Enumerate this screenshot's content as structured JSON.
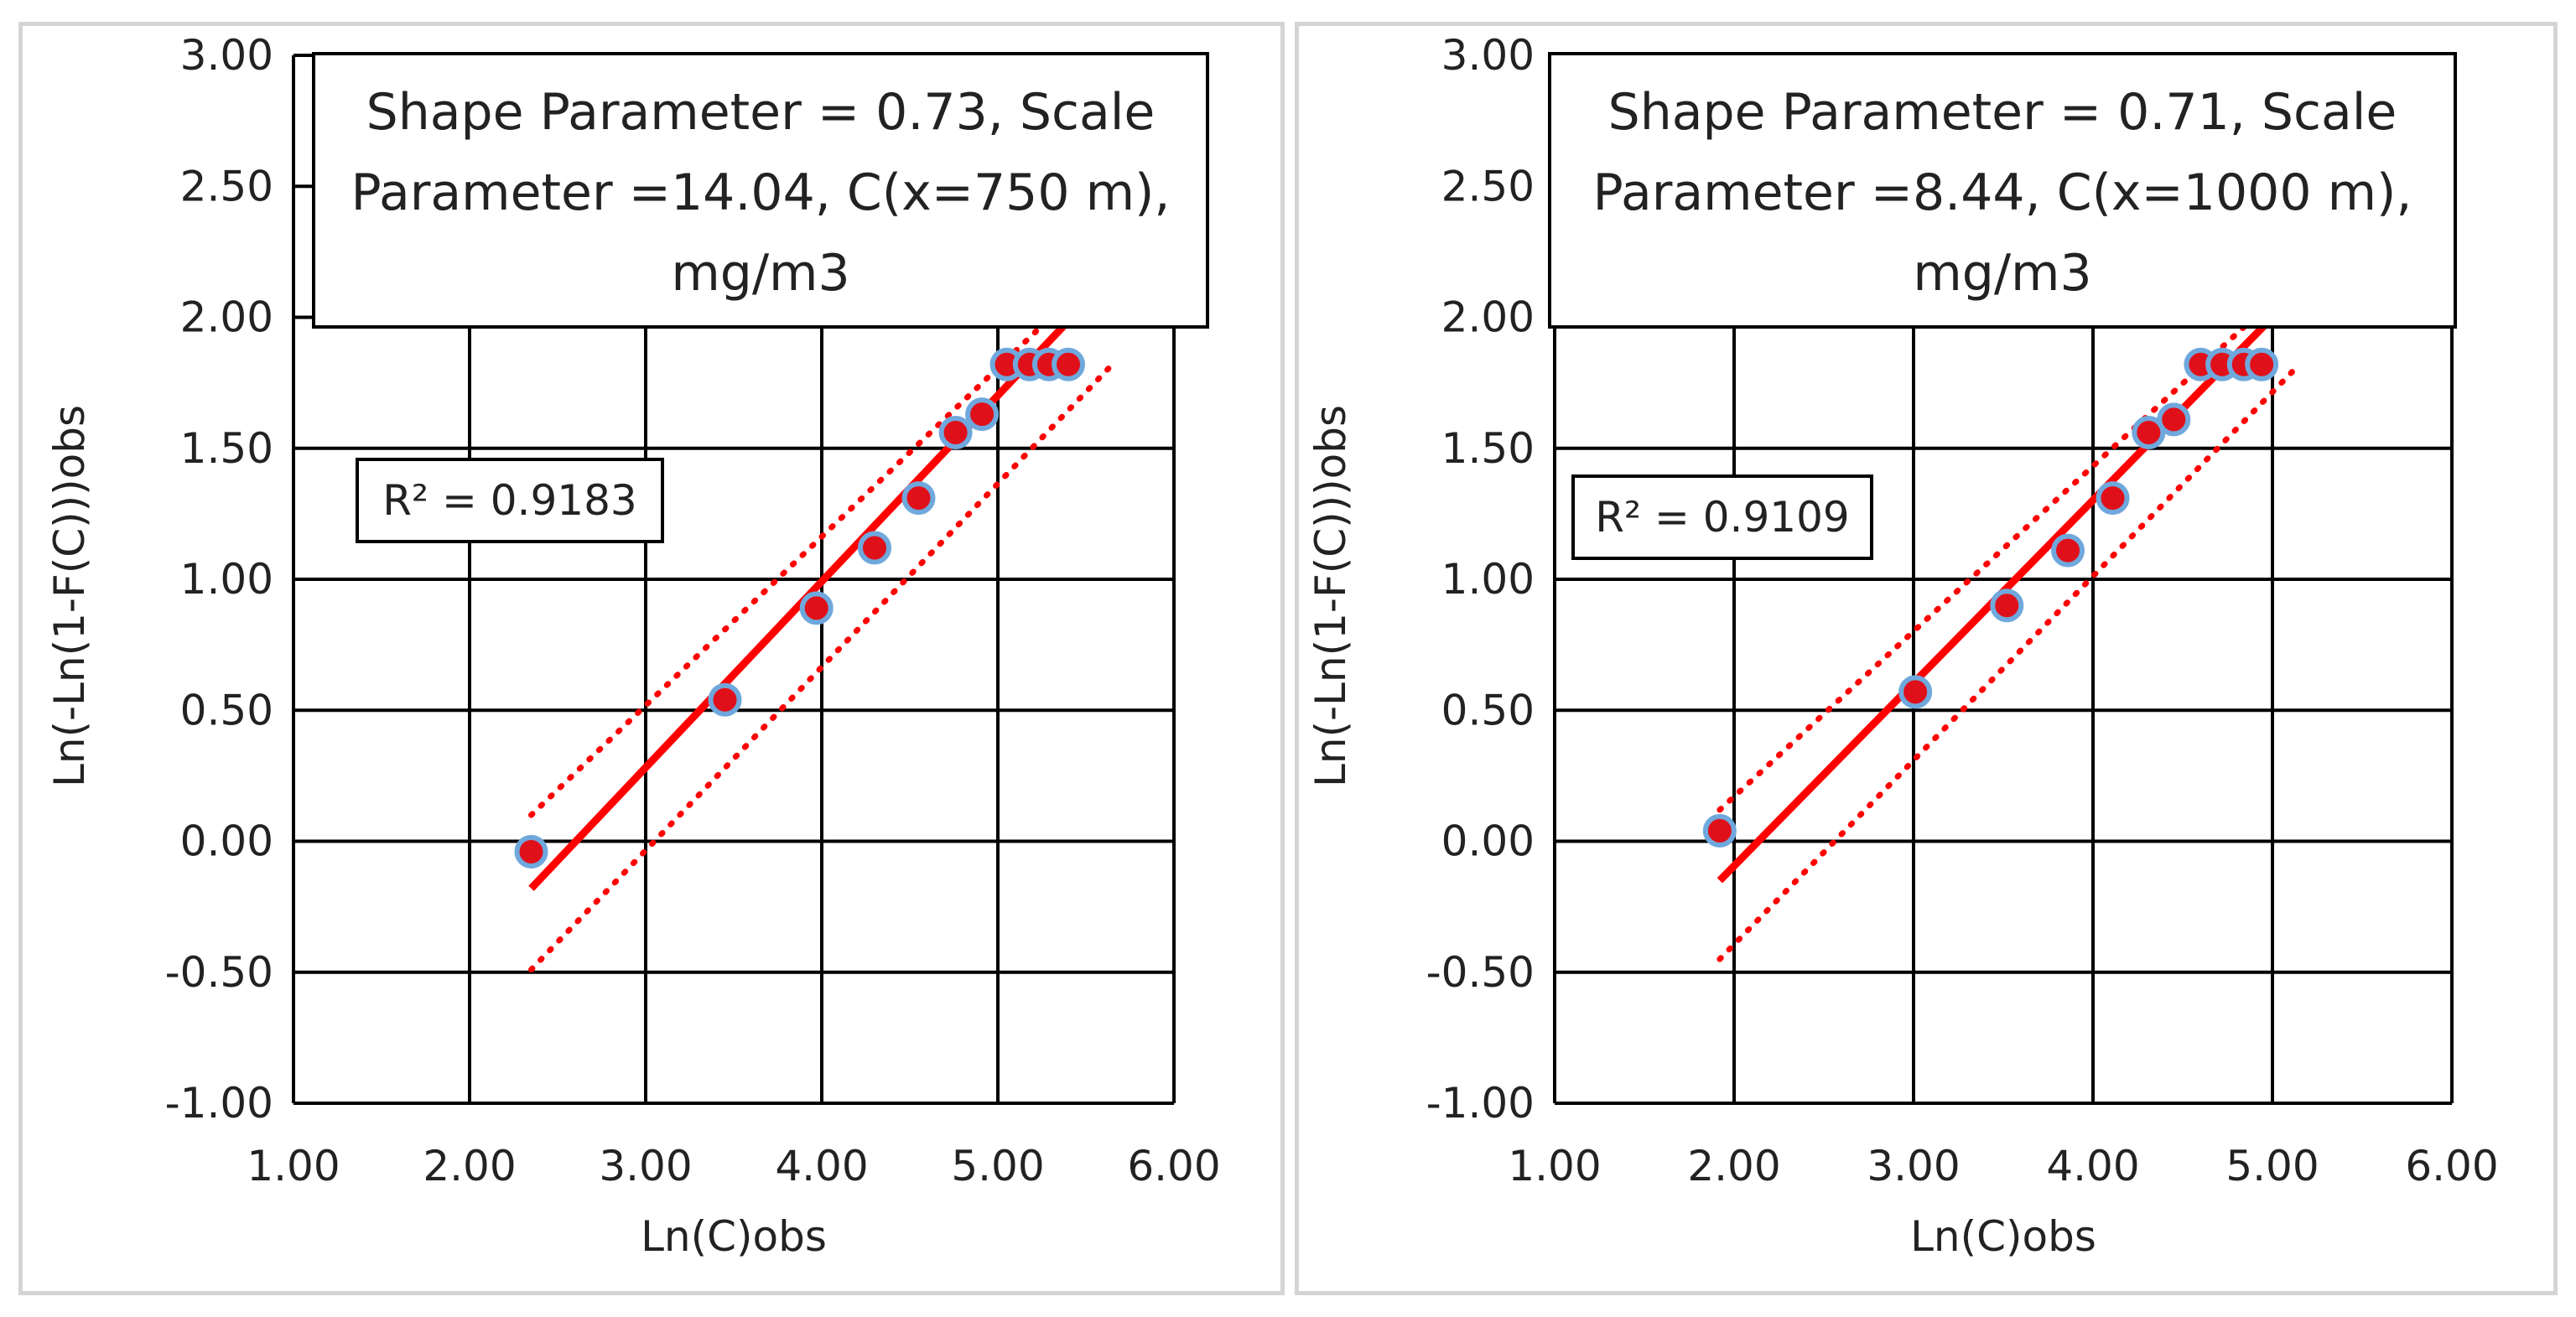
{
  "chart_data": [
    {
      "type": "scatter",
      "xlabel": "Ln(C)obs",
      "ylabel": "Ln(-Ln(1-F(C)))obs",
      "xlim": [
        1.0,
        6.0
      ],
      "ylim": [
        -1.0,
        3.0
      ],
      "x_ticks": [
        "1.00",
        "2.00",
        "3.00",
        "4.00",
        "5.00",
        "6.00"
      ],
      "y_ticks": [
        "-1.00",
        "-0.50",
        "0.00",
        "0.50",
        "1.00",
        "1.50",
        "2.00",
        "2.50",
        "3.00"
      ],
      "grid": true,
      "annotation": [
        "Shape Parameter = 0.73, Scale",
        "Parameter =14.04, C(x=750 m),",
        "mg/m3"
      ],
      "r2_label": "R² = 0.9183",
      "points": [
        {
          "x": 2.35,
          "y": -0.04
        },
        {
          "x": 3.45,
          "y": 0.54
        },
        {
          "x": 3.97,
          "y": 0.89
        },
        {
          "x": 4.3,
          "y": 1.12
        },
        {
          "x": 4.55,
          "y": 1.31
        },
        {
          "x": 4.76,
          "y": 1.56
        },
        {
          "x": 4.91,
          "y": 1.63
        },
        {
          "x": 5.05,
          "y": 1.82
        },
        {
          "x": 5.18,
          "y": 1.82
        },
        {
          "x": 5.29,
          "y": 1.82
        },
        {
          "x": 5.4,
          "y": 1.82
        }
      ],
      "fit_line": {
        "x": [
          2.35,
          5.42
        ],
        "y": [
          -0.18,
          2.0
        ]
      },
      "upper_band": {
        "x": [
          2.35,
          5.3
        ],
        "y": [
          0.1,
          2.0
        ]
      },
      "lower_band": {
        "x": [
          2.35,
          5.65
        ],
        "y": [
          -0.49,
          1.82
        ]
      },
      "colors": {
        "point_fill": "#e0101a",
        "point_edge": "#6fa8dc",
        "line": "#ff0000"
      }
    },
    {
      "type": "scatter",
      "xlabel": "Ln(C)obs",
      "ylabel": "Ln(-Ln(1-F(C)))obs",
      "xlim": [
        1.0,
        6.0
      ],
      "ylim": [
        -1.0,
        3.0
      ],
      "x_ticks": [
        "1.00",
        "2.00",
        "3.00",
        "4.00",
        "5.00",
        "6.00"
      ],
      "y_ticks": [
        "-1.00",
        "-0.50",
        "0.00",
        "0.50",
        "1.00",
        "1.50",
        "2.00",
        "2.50",
        "3.00"
      ],
      "grid": true,
      "annotation": [
        "Shape Parameter = 0.71, Scale",
        "Parameter =8.44, C(x=1000 m),",
        "mg/m3"
      ],
      "r2_label": "R² = 0.9109",
      "points": [
        {
          "x": 1.92,
          "y": 0.04
        },
        {
          "x": 3.01,
          "y": 0.57
        },
        {
          "x": 3.52,
          "y": 0.9
        },
        {
          "x": 3.86,
          "y": 1.11
        },
        {
          "x": 4.11,
          "y": 1.31
        },
        {
          "x": 4.31,
          "y": 1.56
        },
        {
          "x": 4.45,
          "y": 1.61
        },
        {
          "x": 4.6,
          "y": 1.82
        },
        {
          "x": 4.72,
          "y": 1.82
        },
        {
          "x": 4.84,
          "y": 1.82
        },
        {
          "x": 4.94,
          "y": 1.82
        }
      ],
      "fit_line": {
        "x": [
          1.92,
          5.0
        ],
        "y": [
          -0.15,
          2.0
        ]
      },
      "upper_band": {
        "x": [
          1.92,
          4.9
        ],
        "y": [
          0.12,
          2.0
        ]
      },
      "lower_band": {
        "x": [
          1.92,
          5.15
        ],
        "y": [
          -0.45,
          1.82
        ]
      },
      "colors": {
        "point_fill": "#e0101a",
        "point_edge": "#6fa8dc",
        "line": "#ff0000"
      }
    }
  ]
}
